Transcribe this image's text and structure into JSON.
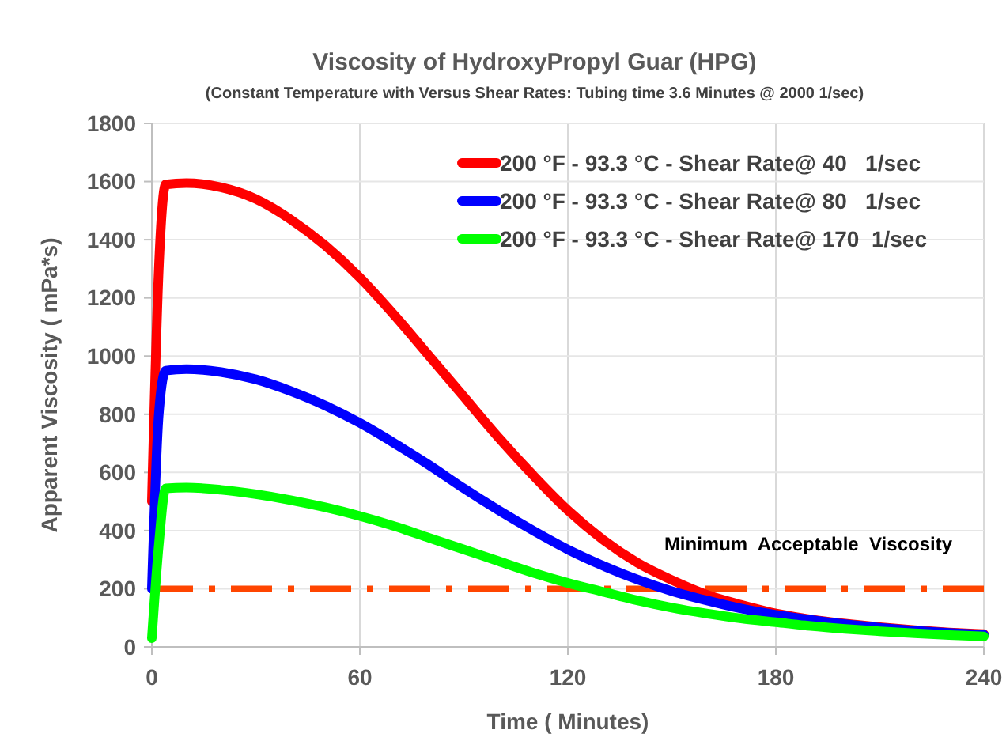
{
  "chart_data": {
    "type": "line",
    "title": "Viscosity of HydroxyPropyl Guar (HPG)",
    "subtitle": "(Constant Temperature with Versus Shear Rates: Tubing time 3.6 Minutes @ 2000 1/sec)",
    "xlabel": "Time ( Minutes)",
    "ylabel": "Apparent Viscosity ( mPa*s)",
    "x": [
      0,
      2,
      4,
      10,
      20,
      30,
      40,
      50,
      60,
      70,
      80,
      90,
      100,
      110,
      120,
      130,
      140,
      150,
      160,
      170,
      180,
      190,
      200,
      210,
      220,
      230,
      240
    ],
    "series": [
      {
        "name": "200 °F - 93.3 °C - Shear Rate@ 40   1/sec",
        "color": "#ff0000",
        "values": [
          500,
          1300,
          1590,
          1595,
          1580,
          1540,
          1470,
          1380,
          1270,
          1140,
          1000,
          860,
          720,
          590,
          470,
          370,
          290,
          230,
          180,
          145,
          115,
          95,
          80,
          68,
          58,
          50,
          44
        ]
      },
      {
        "name": "200 °F - 93.3 °C - Shear Rate@ 80   1/sec",
        "color": "#0000ff",
        "values": [
          200,
          800,
          950,
          955,
          945,
          920,
          880,
          830,
          770,
          700,
          625,
          545,
          470,
          400,
          335,
          280,
          232,
          192,
          160,
          132,
          110,
          93,
          78,
          66,
          56,
          48,
          42
        ]
      },
      {
        "name": "200 °F - 93.3 °C - Shear Rate@ 170  1/sec",
        "color": "#00ff00",
        "values": [
          30,
          350,
          545,
          548,
          540,
          525,
          505,
          480,
          450,
          415,
          375,
          335,
          295,
          255,
          220,
          190,
          160,
          135,
          115,
          98,
          85,
          72,
          62,
          54,
          47,
          41,
          36
        ]
      }
    ],
    "ref_lines": [
      {
        "axis": "y",
        "value": 200,
        "label": "Minimum  Acceptable  Viscosity",
        "color": "#ff4500",
        "line_style": "dashed"
      }
    ],
    "xlim": [
      0,
      240
    ],
    "xticks": [
      0,
      60,
      120,
      180,
      240
    ],
    "ylim": [
      0,
      1800
    ],
    "yticks": [
      0,
      200,
      400,
      600,
      800,
      1000,
      1200,
      1400,
      1600,
      1800
    ],
    "grid": true,
    "legend": "top right",
    "line_style": "solid",
    "marker": "none"
  }
}
